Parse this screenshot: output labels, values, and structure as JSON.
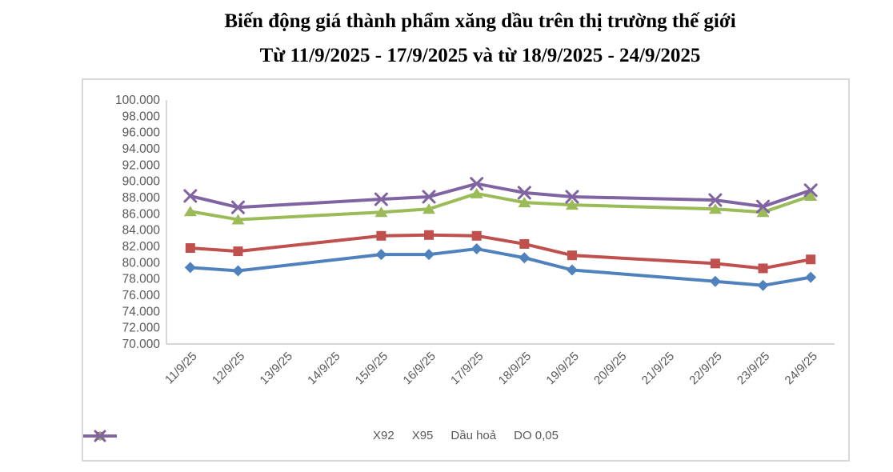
{
  "title": {
    "line1": "Biến động giá thành phẩm xăng dầu trên thị trường thế giới",
    "line2": "Từ 11/9/2025 - 17/9/2025 và từ 18/9/2025 - 24/9/2025"
  },
  "chart_data": {
    "type": "line",
    "categories": [
      "11/9/25",
      "12/9/25",
      "13/9/25",
      "14/9/25",
      "15/9/25",
      "16/9/25",
      "17/9/25",
      "18/9/25",
      "19/9/25",
      "20/9/25",
      "21/9/25",
      "22/9/25",
      "23/9/25",
      "24/9/25"
    ],
    "series": [
      {
        "name": "X92",
        "color": "#4F81BD",
        "marker": "diamond",
        "values": [
          79400,
          79000,
          null,
          null,
          81000,
          81000,
          81700,
          80600,
          79100,
          null,
          null,
          77700,
          77200,
          78200
        ]
      },
      {
        "name": "X95",
        "color": "#C0504D",
        "marker": "square",
        "values": [
          81800,
          81400,
          null,
          null,
          83300,
          83400,
          83300,
          82300,
          80900,
          null,
          null,
          79900,
          79300,
          80400
        ]
      },
      {
        "name": "Dầu hoả",
        "color": "#9BBB59",
        "marker": "triangle",
        "values": [
          86300,
          85300,
          null,
          null,
          86200,
          86600,
          88500,
          87400,
          87100,
          null,
          null,
          86600,
          86200,
          88200
        ]
      },
      {
        "name": "DO 0,05",
        "color": "#8064A2",
        "marker": "x",
        "values": [
          88200,
          86800,
          null,
          null,
          87800,
          88100,
          89700,
          88600,
          88100,
          null,
          null,
          87700,
          86900,
          88900
        ]
      }
    ],
    "ylim": [
      70000,
      100000
    ],
    "ytick_step": 2000,
    "ytick_labels": [
      "100.000",
      "98.000",
      "96.000",
      "94.000",
      "92.000",
      "90.000",
      "88.000",
      "86.000",
      "84.000",
      "82.000",
      "80.000",
      "78.000",
      "76.000",
      "74.000",
      "72.000",
      "70.000"
    ],
    "grid": false,
    "legend_position": "bottom",
    "xlabel": "",
    "ylabel": ""
  },
  "colors": {
    "axis_text": "#595959",
    "axis_line": "#C9C9C9",
    "card_border": "#D9D9D9",
    "title_text": "#000000",
    "background": "#FFFFFF"
  }
}
